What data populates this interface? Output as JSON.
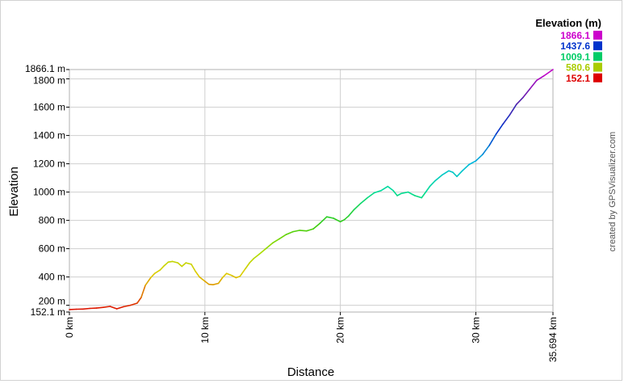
{
  "chart_data": {
    "type": "line",
    "xlabel": "Distance",
    "ylabel": "Elevation",
    "xlim": [
      0,
      35.694
    ],
    "ylim": [
      152.1,
      1866.1
    ],
    "x_ticks": [
      {
        "value": 0,
        "label": "0 km"
      },
      {
        "value": 10,
        "label": "10 km"
      },
      {
        "value": 20,
        "label": "20 km"
      },
      {
        "value": 30,
        "label": "30 km"
      },
      {
        "value": 35.694,
        "label": "35.694 km"
      }
    ],
    "y_ticks": [
      {
        "value": 152.1,
        "label": "152.1 m"
      },
      {
        "value": 200,
        "label": "200 m"
      },
      {
        "value": 400,
        "label": "400 m"
      },
      {
        "value": 600,
        "label": "600 m"
      },
      {
        "value": 800,
        "label": "800 m"
      },
      {
        "value": 1000,
        "label": "1000 m"
      },
      {
        "value": 1200,
        "label": "1200 m"
      },
      {
        "value": 1400,
        "label": "1400 m"
      },
      {
        "value": 1600,
        "label": "1600 m"
      },
      {
        "value": 1800,
        "label": "1800 m"
      },
      {
        "value": 1866.1,
        "label": "1866.1 m"
      }
    ],
    "grid": true,
    "legend": {
      "position": "top-right",
      "title": "Elevation (m)",
      "entries": [
        {
          "label": "1866.1",
          "value": 1866.1,
          "color": "#cc00cc"
        },
        {
          "label": "1437.6",
          "value": 1437.6,
          "color": "#0033cc"
        },
        {
          "label": "1009.1",
          "value": 1009.1,
          "color": "#00cc66"
        },
        {
          "label": "580.6",
          "value": 580.6,
          "color": "#aacc00"
        },
        {
          "label": "152.1",
          "value": 152.1,
          "color": "#dd0000"
        }
      ]
    },
    "color_scale": [
      {
        "value": 152.1,
        "color": "#dd0000"
      },
      {
        "value": 260,
        "color": "#e06000"
      },
      {
        "value": 420,
        "color": "#ddcc00"
      },
      {
        "value": 580.6,
        "color": "#aadd00"
      },
      {
        "value": 780,
        "color": "#33cc11"
      },
      {
        "value": 1009.1,
        "color": "#00dd99"
      },
      {
        "value": 1200,
        "color": "#00bbdd"
      },
      {
        "value": 1437.6,
        "color": "#0033cc"
      },
      {
        "value": 1650,
        "color": "#5522aa"
      },
      {
        "value": 1866.1,
        "color": "#cc00cc"
      }
    ],
    "series": [
      {
        "x": [
          0,
          0.5,
          1.0,
          1.5,
          2.0,
          2.5,
          3.0,
          3.5,
          4.0,
          4.5,
          5.0,
          5.3,
          5.6,
          6.0,
          6.3,
          6.7,
          7.0,
          7.3,
          7.6,
          8.0,
          8.3,
          8.6,
          9.0,
          9.3,
          9.6,
          10.0,
          10.3,
          10.6,
          11.0,
          11.3,
          11.6,
          12.0,
          12.3,
          12.6,
          13.0,
          13.3,
          13.6,
          14.0,
          14.5,
          15.0,
          15.5,
          16.0,
          16.5,
          17.0,
          17.5,
          18.0,
          18.5,
          19.0,
          19.5,
          20.0,
          20.3,
          20.6,
          21.0,
          21.5,
          22.0,
          22.5,
          23.0,
          23.5,
          23.9,
          24.2,
          24.5,
          25.0,
          25.5,
          26.0,
          26.3,
          26.6,
          27.0,
          27.5,
          28.0,
          28.3,
          28.6,
          29.0,
          29.5,
          30.0,
          30.5,
          31.0,
          31.5,
          32.0,
          32.5,
          33.0,
          33.5,
          34.0,
          34.5,
          35.0,
          35.694
        ],
        "y": [
          170,
          172,
          173,
          178,
          180,
          185,
          192,
          175,
          190,
          200,
          215,
          255,
          340,
          395,
          425,
          450,
          480,
          505,
          510,
          500,
          475,
          500,
          490,
          440,
          400,
          370,
          348,
          345,
          355,
          395,
          425,
          410,
          395,
          405,
          460,
          500,
          530,
          560,
          600,
          640,
          670,
          700,
          720,
          730,
          725,
          740,
          780,
          825,
          815,
          790,
          805,
          830,
          875,
          920,
          960,
          995,
          1010,
          1040,
          1010,
          975,
          990,
          1000,
          975,
          960,
          1000,
          1040,
          1080,
          1120,
          1150,
          1140,
          1110,
          1150,
          1195,
          1220,
          1265,
          1330,
          1410,
          1480,
          1545,
          1620,
          1670,
          1730,
          1790,
          1820,
          1866
        ]
      }
    ]
  },
  "credit": "created by GPSVisualizer.com"
}
